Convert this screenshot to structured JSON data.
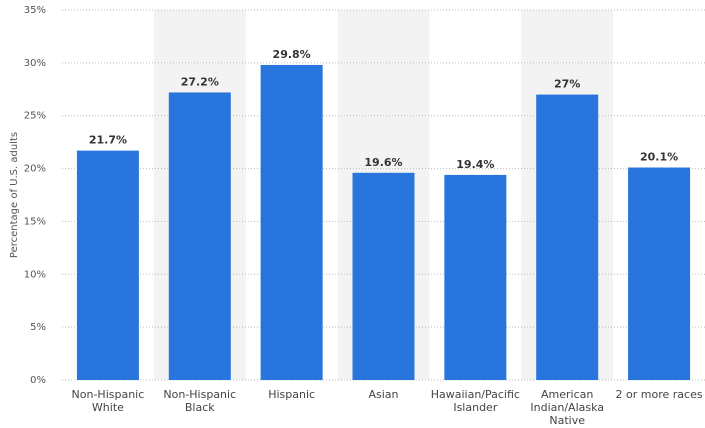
{
  "chart_data": {
    "type": "bar",
    "y_label": "Percentage of U.S. adults",
    "categories": [
      "Non-Hispanic\nWhite",
      "Non-Hispanic\nBlack",
      "Hispanic",
      "Asian",
      "Hawaiian/Pacific\nIslander",
      "American\nIndian/Alaska\nNative",
      "2 or more races"
    ],
    "values": [
      21.7,
      27.2,
      29.8,
      19.6,
      19.4,
      27,
      20.1
    ],
    "value_labels": [
      "21.7%",
      "27.2%",
      "29.8%",
      "19.6%",
      "19.4%",
      "27%",
      "20.1%"
    ],
    "color": "#2876dd",
    "ylim": [
      0,
      35
    ],
    "yticks": [
      {
        "value": 0,
        "label": "0%"
      },
      {
        "value": 5,
        "label": "5%"
      },
      {
        "value": 10,
        "label": "10%"
      },
      {
        "value": 15,
        "label": "15%"
      },
      {
        "value": 20,
        "label": "20%"
      },
      {
        "value": 25,
        "label": "25%"
      },
      {
        "value": 30,
        "label": "30%"
      },
      {
        "value": 35,
        "label": "35%"
      }
    ],
    "grid": true
  }
}
